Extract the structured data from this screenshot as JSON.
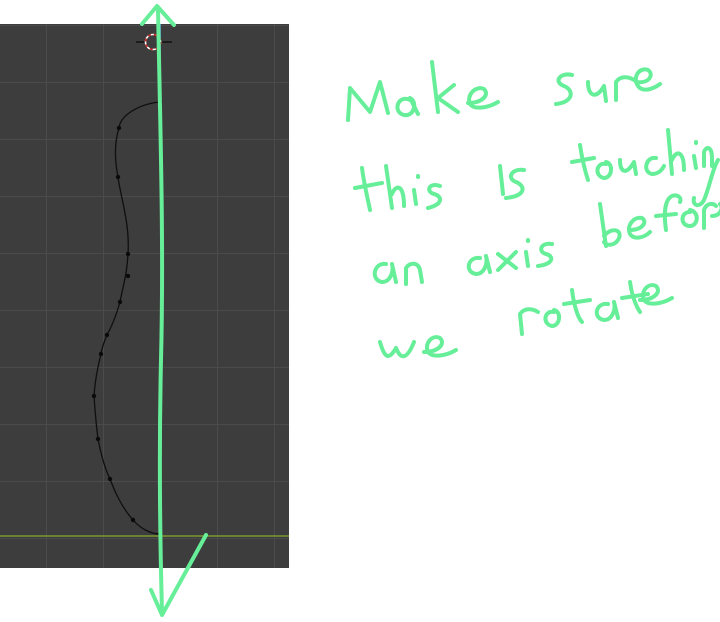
{
  "viewport": {
    "background_color": "#3d3d3d",
    "grid_color": "#4b4b4b",
    "x_axis_color": "#7a9a2e",
    "curve_color": "#0f0f0f",
    "control_point_color": "#0a0a0a",
    "cursor_colors": [
      "#cc2222",
      "#ffffff"
    ]
  },
  "annotation": {
    "ink_color": "#66ee99",
    "arrow_direction": "vertical, pointing up and down",
    "handwritten_note": "Make sure this is touching an axis before we rotate",
    "icons": [
      "3d-cursor-icon",
      "up-arrowhead-icon",
      "down-arrowhead-icon"
    ]
  }
}
